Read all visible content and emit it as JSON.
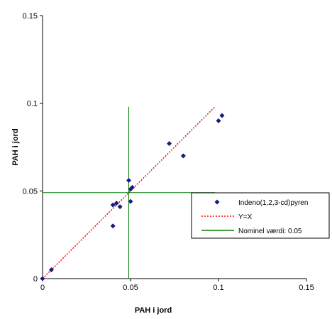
{
  "chart_data": {
    "type": "scatter",
    "title": "",
    "xlabel": "PAH i jord",
    "ylabel": "PAH i jord",
    "xlim": [
      0,
      0.15
    ],
    "ylim": [
      0,
      0.15
    ],
    "x_ticks": [
      0,
      0.05,
      0.1,
      0.15
    ],
    "y_ticks": [
      0,
      0.05,
      0.1,
      0.15
    ],
    "x_tick_labels": [
      "0",
      "0.05",
      "0.1",
      "0.15"
    ],
    "y_tick_labels": [
      "0",
      "0.05",
      "0.1",
      "0.15"
    ],
    "grid": false,
    "legend_position": "right",
    "series": [
      {
        "name": "Indeno(1,2,3-cd)pyren",
        "kind": "scatter",
        "marker": "diamond",
        "color": "#1a1a80",
        "points": [
          [
            0,
            0
          ],
          [
            0.005,
            0.005
          ],
          [
            0.04,
            0.03
          ],
          [
            0.04,
            0.042
          ],
          [
            0.042,
            0.043
          ],
          [
            0.044,
            0.041
          ],
          [
            0.049,
            0.056
          ],
          [
            0.05,
            0.044
          ],
          [
            0.05,
            0.051
          ],
          [
            0.051,
            0.052
          ],
          [
            0.072,
            0.077
          ],
          [
            0.08,
            0.07
          ],
          [
            0.1,
            0.09
          ],
          [
            0.102,
            0.093
          ]
        ]
      },
      {
        "name": "Y=X",
        "kind": "line",
        "style": "dotted",
        "color": "#ff0000",
        "points": [
          [
            0,
            0
          ],
          [
            0.098,
            0.098
          ]
        ]
      },
      {
        "name": "Nominel værdi: 0.05",
        "kind": "reference",
        "color": "#008000",
        "value": 0.049,
        "extent": 0.098
      }
    ]
  }
}
